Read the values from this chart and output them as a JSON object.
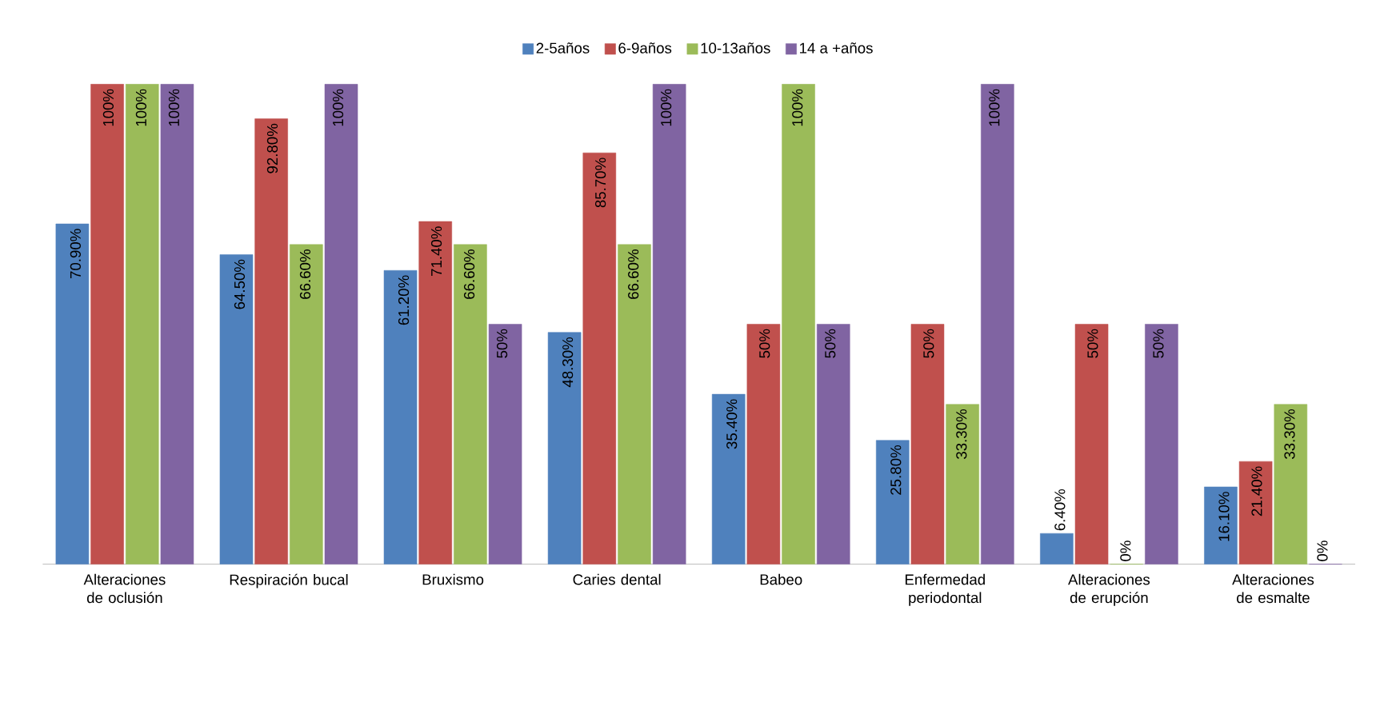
{
  "chart_data": {
    "type": "bar",
    "categories": [
      "Alteraciones de oclusión",
      "Respiración bucal",
      "Bruxismo",
      "Caries dental",
      "Babeo",
      "Enfermedad periodontal",
      "Alteraciones de erupción",
      "Alteraciones de esmalte"
    ],
    "series": [
      {
        "name": "2-5años",
        "color": "#4f81bd",
        "values": [
          70.9,
          64.5,
          61.2,
          48.3,
          35.4,
          25.8,
          6.4,
          16.1
        ],
        "value_labels": [
          "70.90%",
          "64.50%",
          "61.20%",
          "48.30%",
          "35.40%",
          "25.80%",
          "6.40%",
          "16.10%"
        ]
      },
      {
        "name": "6-9años",
        "color": "#c0504d",
        "values": [
          100,
          92.8,
          71.4,
          85.7,
          50,
          50,
          50,
          21.4
        ],
        "value_labels": [
          "100%",
          "92.80%",
          "71.40%",
          "85.70%",
          "50%",
          "50%",
          "50%",
          "21.40%"
        ]
      },
      {
        "name": "10-13años",
        "color": "#9bbb59",
        "values": [
          100,
          66.6,
          66.6,
          66.6,
          100,
          33.3,
          0,
          33.3
        ],
        "value_labels": [
          "100%",
          "66.60%",
          "66.60%",
          "66.60%",
          "100%",
          "33.30%",
          "0%",
          "33.30%"
        ]
      },
      {
        "name": "14 a +años",
        "color": "#8064a2",
        "values": [
          100,
          100,
          50,
          100,
          50,
          100,
          50,
          0
        ],
        "value_labels": [
          "100%",
          "100%",
          "50%",
          "100%",
          "50%",
          "100%",
          "50%",
          "0%"
        ]
      }
    ],
    "legend": "top"
  }
}
